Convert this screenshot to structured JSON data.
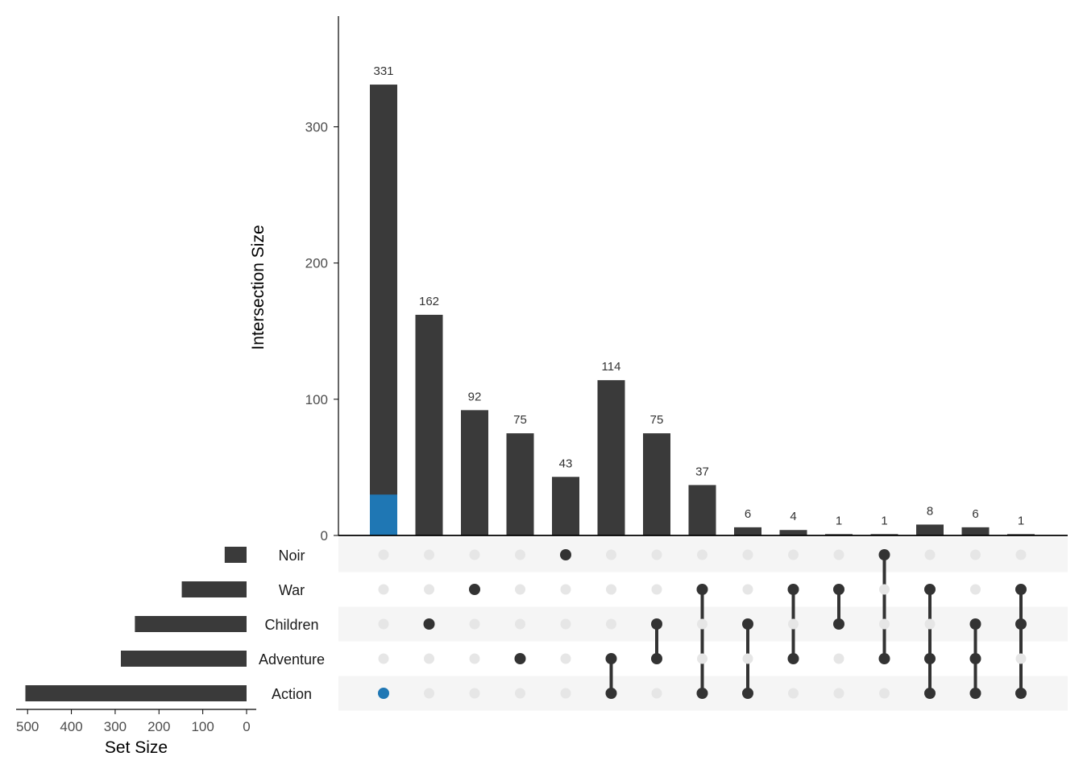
{
  "chart_data": {
    "type": "bar",
    "variant": "upset",
    "ylabel": "Intersection Size",
    "xlabel": "Set Size",
    "ylim": [
      0,
      380
    ],
    "yticks": [
      0,
      100,
      200,
      300
    ],
    "set_size_xlim": [
      0,
      520
    ],
    "set_size_ticks": [
      0,
      100,
      200,
      300,
      400,
      500
    ],
    "sets": [
      {
        "name": "Noir",
        "size": 50
      },
      {
        "name": "War",
        "size": 148
      },
      {
        "name": "Children",
        "size": 255
      },
      {
        "name": "Adventure",
        "size": 287
      },
      {
        "name": "Action",
        "size": 505
      }
    ],
    "intersections": [
      {
        "sets": [
          "Action"
        ],
        "value": 331,
        "highlight_value": 30
      },
      {
        "sets": [
          "Children"
        ],
        "value": 162
      },
      {
        "sets": [
          "War"
        ],
        "value": 92
      },
      {
        "sets": [
          "Adventure"
        ],
        "value": 75
      },
      {
        "sets": [
          "Noir"
        ],
        "value": 43
      },
      {
        "sets": [
          "Adventure",
          "Action"
        ],
        "value": 114
      },
      {
        "sets": [
          "Children",
          "Adventure"
        ],
        "value": 75
      },
      {
        "sets": [
          "War",
          "Action"
        ],
        "value": 37
      },
      {
        "sets": [
          "Children",
          "Action"
        ],
        "value": 6
      },
      {
        "sets": [
          "War",
          "Adventure"
        ],
        "value": 4
      },
      {
        "sets": [
          "War",
          "Children"
        ],
        "value": 1
      },
      {
        "sets": [
          "Noir",
          "Adventure"
        ],
        "value": 1
      },
      {
        "sets": [
          "War",
          "Adventure",
          "Action"
        ],
        "value": 8
      },
      {
        "sets": [
          "Children",
          "Adventure",
          "Action"
        ],
        "value": 6
      },
      {
        "sets": [
          "War",
          "Children",
          "Action"
        ],
        "value": 1
      }
    ],
    "colors": {
      "bar": "#3a3a3a",
      "highlight": "#1f77b4",
      "dot_active": "#333333",
      "dot_inactive": "#e6e6e6",
      "stripe": "#f5f5f5"
    }
  }
}
